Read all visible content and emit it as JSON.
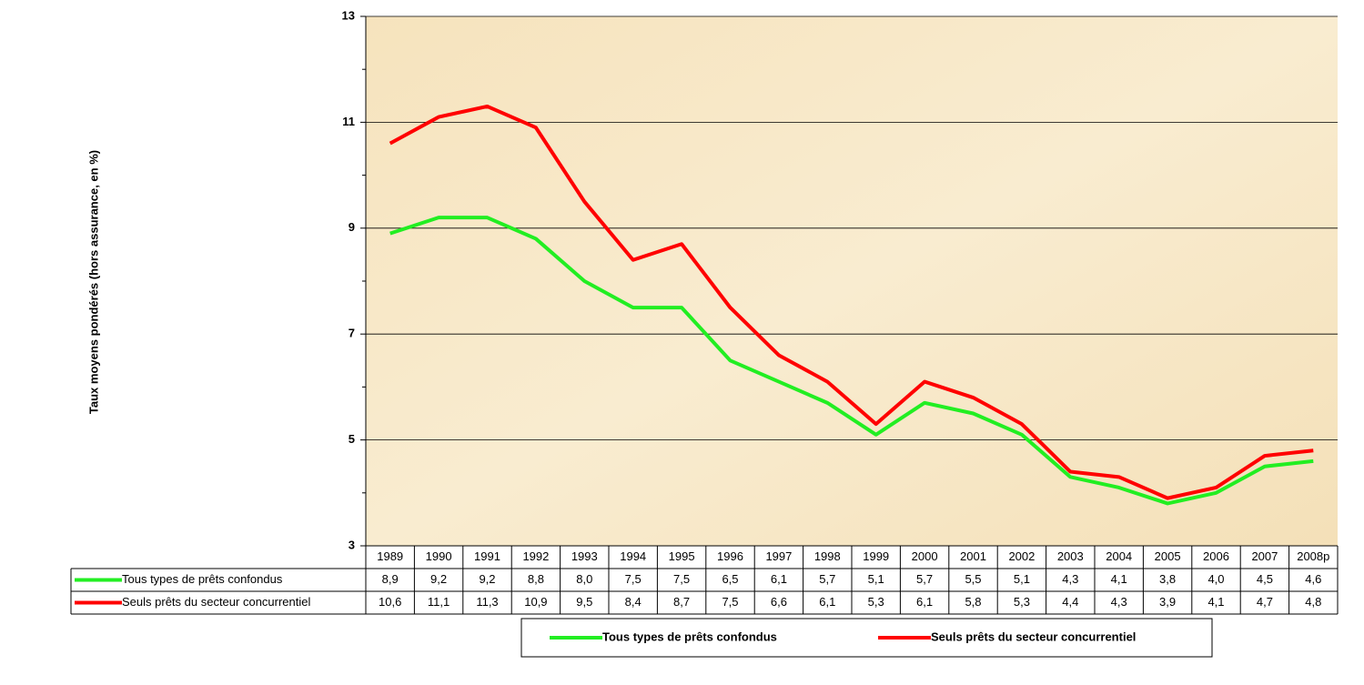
{
  "chart_data": {
    "type": "line",
    "y_label": "Taux moyens pondérés (hors assurance, en %)",
    "categories": [
      "1989",
      "1990",
      "1991",
      "1992",
      "1993",
      "1994",
      "1995",
      "1996",
      "1997",
      "1998",
      "1999",
      "2000",
      "2001",
      "2002",
      "2003",
      "2004",
      "2005",
      "2006",
      "2007",
      "2008p"
    ],
    "series": [
      {
        "name": "Tous types de prêts confondus",
        "color": "#22ee22",
        "values": [
          8.9,
          9.2,
          9.2,
          8.8,
          8.0,
          7.5,
          7.5,
          6.5,
          6.1,
          5.7,
          5.1,
          5.7,
          5.5,
          5.1,
          4.3,
          4.1,
          3.8,
          4.0,
          4.5,
          4.6
        ],
        "value_labels": [
          "8,9",
          "9,2",
          "9,2",
          "8,8",
          "8,0",
          "7,5",
          "7,5",
          "6,5",
          "6,1",
          "5,7",
          "5,1",
          "5,7",
          "5,5",
          "5,1",
          "4,3",
          "4,1",
          "3,8",
          "4,0",
          "4,5",
          "4,6"
        ]
      },
      {
        "name": "Seuls prêts du secteur concurrentiel",
        "color": "#ff0000",
        "values": [
          10.6,
          11.1,
          11.3,
          10.9,
          9.5,
          8.4,
          8.7,
          7.5,
          6.6,
          6.1,
          5.3,
          6.1,
          5.8,
          5.3,
          4.4,
          4.3,
          3.9,
          4.1,
          4.7,
          4.8
        ],
        "value_labels": [
          "10,6",
          "11,1",
          "11,3",
          "10,9",
          "9,5",
          "8,4",
          "8,7",
          "7,5",
          "6,6",
          "6,1",
          "5,3",
          "6,1",
          "5,8",
          "5,3",
          "4,4",
          "4,3",
          "3,9",
          "4,1",
          "4,7",
          "4,8"
        ]
      }
    ],
    "ylim": [
      3,
      13
    ],
    "yticks": [
      3,
      5,
      7,
      9,
      11,
      13
    ],
    "minor_yticks": [
      4,
      6,
      8,
      10,
      12
    ],
    "grid": true,
    "legend": "bottom"
  }
}
